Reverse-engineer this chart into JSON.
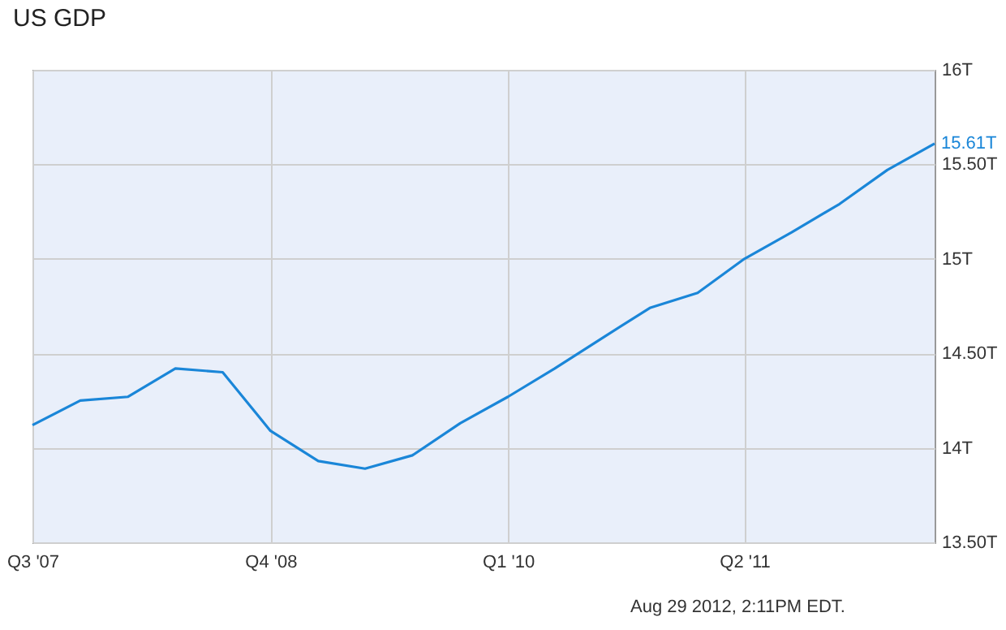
{
  "chart_data": {
    "type": "line",
    "title": "US GDP",
    "x": [
      "2007-07",
      "2007-10",
      "2008-01",
      "2008-04",
      "2008-07",
      "2008-10",
      "2009-01",
      "2009-04",
      "2009-07",
      "2009-10",
      "2010-01",
      "2010-04",
      "2010-07",
      "2010-10",
      "2011-01",
      "2011-04",
      "2011-07",
      "2011-10",
      "2012-01",
      "2012-04"
    ],
    "series": [
      {
        "color": "#1a86d8",
        "values": [
          14.12,
          14.25,
          14.27,
          14.42,
          14.4,
          14.09,
          13.93,
          13.89,
          13.96,
          14.13,
          14.27,
          14.42,
          14.58,
          14.74,
          14.82,
          15.0,
          15.14,
          15.29,
          15.47,
          15.61
        ],
        "value_labels": [
          null,
          null,
          null,
          null,
          null,
          null,
          null,
          null,
          null,
          null,
          null,
          null,
          null,
          null,
          null,
          null,
          null,
          null,
          null,
          "15.61T"
        ]
      }
    ],
    "xlim": [
      "2007-07",
      "2012-04"
    ],
    "xticks": [
      {
        "value": "2007-07",
        "label": "Q3  '07"
      },
      {
        "value": "2008-10",
        "label": "Q4  '08"
      },
      {
        "value": "2010-01",
        "label": "Q1  '10"
      },
      {
        "value": "2011-04",
        "label": "Q2  '11"
      }
    ],
    "ylim": [
      13.5,
      16
    ],
    "yticks": [
      {
        "value": 13.5,
        "label": "13.50T"
      },
      {
        "value": 14,
        "label": "14T"
      },
      {
        "value": 14.5,
        "label": "14.50T"
      },
      {
        "value": 15,
        "label": "15T"
      },
      {
        "value": 15.5,
        "label": "15.50T"
      },
      {
        "value": 16,
        "label": "16T"
      }
    ],
    "grid": true,
    "marker": "none",
    "line_style": "solid",
    "annotations": [
      "Aug 29 2012, 2:11PM EDT."
    ]
  }
}
